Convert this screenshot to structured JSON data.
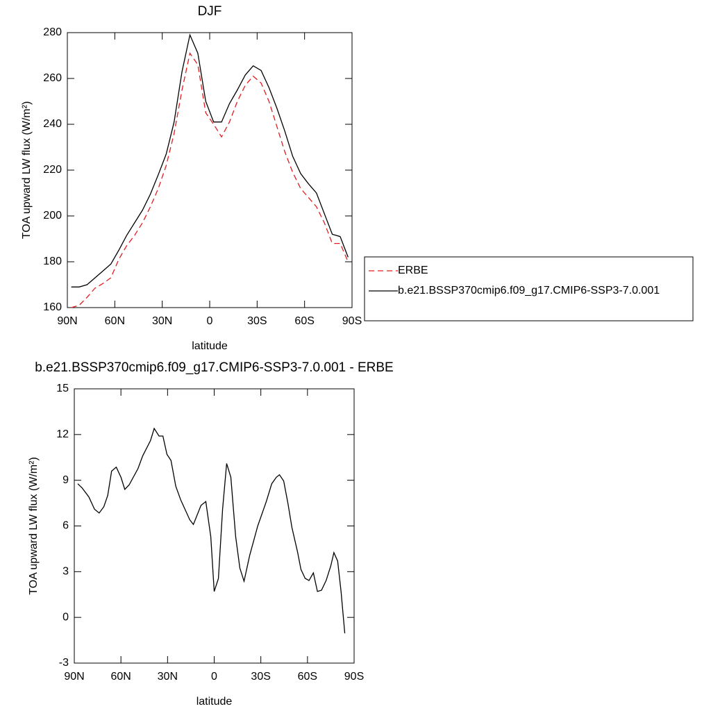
{
  "chart_data": [
    {
      "type": "line",
      "title": "DJF",
      "x_label": "latitude",
      "y_label": "TOA upward LW flux (W/m²)",
      "xlim": [
        90,
        -90
      ],
      "xticks": [
        {
          "value": 90,
          "label": "90N"
        },
        {
          "value": 60,
          "label": "60N"
        },
        {
          "value": 30,
          "label": "30N"
        },
        0,
        {
          "value": -30,
          "label": "30S"
        },
        {
          "value": -60,
          "label": "60S"
        },
        {
          "value": -90,
          "label": "90S"
        }
      ],
      "ylim": [
        160,
        280
      ],
      "yticks": [
        160,
        180,
        200,
        220,
        240,
        260,
        280
      ],
      "legend": "outside-right",
      "x": [
        87.5,
        82.5,
        77.5,
        72.5,
        67.5,
        62.5,
        57.5,
        52.5,
        47.5,
        42.5,
        37.5,
        32.5,
        27.5,
        22.5,
        17.5,
        12.5,
        7.5,
        2.5,
        -2.5,
        -7.5,
        -12.5,
        -17.5,
        -22.5,
        -27.5,
        -32.5,
        -37.5,
        -42.5,
        -47.5,
        -52.5,
        -57.5,
        -62.5,
        -67.5,
        -72.5,
        -77.5,
        -82.5,
        -87.5
      ],
      "series": [
        {
          "name": "ERBE",
          "color": "#e41a1c",
          "dash": "dashed",
          "values": [
            160,
            161,
            164.5,
            168.5,
            170.5,
            173,
            181,
            187,
            191.5,
            197,
            204,
            212,
            222,
            236,
            255,
            271,
            266,
            245,
            240,
            234.5,
            241,
            250,
            257,
            261,
            258,
            250,
            239,
            228,
            219,
            212,
            208,
            204,
            197,
            188,
            188,
            180
          ]
        },
        {
          "name": "b.e21.BSSP370cmip6.f09_g17.CMIP6-SSP3-7.0.001",
          "color": "#000000",
          "dash": "solid",
          "values": [
            169,
            169,
            170,
            173,
            176,
            179,
            185,
            191.5,
            197,
            202.5,
            209.5,
            218,
            227,
            241,
            263,
            279,
            271,
            250,
            241,
            241,
            249,
            255,
            261.5,
            265.5,
            263.5,
            256,
            247,
            237,
            226,
            218.5,
            214,
            210,
            201,
            192,
            191,
            182
          ]
        }
      ]
    },
    {
      "type": "line",
      "title": "b.e21.BSSP370cmip6.f09_g17.CMIP6-SSP3-7.0.001 - ERBE",
      "x_label": "latitude",
      "y_label": "TOA upward LW flux (W/m²)",
      "xlim": [
        90,
        -90
      ],
      "xticks": [
        {
          "value": 90,
          "label": "90N"
        },
        {
          "value": 60,
          "label": "60N"
        },
        {
          "value": 30,
          "label": "30N"
        },
        0,
        {
          "value": -30,
          "label": "30S"
        },
        {
          "value": -60,
          "label": "60S"
        },
        {
          "value": -90,
          "label": "90S"
        }
      ],
      "ylim": [
        -3,
        15
      ],
      "yticks": [
        -3,
        0,
        3,
        6,
        9,
        12,
        15
      ],
      "x": [
        87.8,
        85,
        80.6,
        77,
        74,
        71,
        68.5,
        66,
        63,
        60,
        57.5,
        54.7,
        49,
        46,
        43,
        41,
        38.6,
        35.5,
        33,
        30.4,
        27.8,
        24.7,
        21.5,
        15.7,
        13.4,
        8.5,
        5.4,
        2.2,
        0,
        -2.7,
        -5.4,
        -8,
        -10.7,
        -13.8,
        -16.5,
        -19.2,
        -22.8,
        -28,
        -33.5,
        -37,
        -40,
        -42,
        -44.7,
        -47.4,
        -50,
        -53.6,
        -55.8,
        -58.5,
        -61,
        -63.8,
        -66.4,
        -69,
        -72,
        -75,
        -77,
        -79.4,
        -81.6,
        -84
      ],
      "series": [
        {
          "color": "#000000",
          "dash": "solid",
          "values": [
            8.77,
            8.5,
            7.9,
            7.1,
            6.85,
            7.26,
            8.0,
            9.6,
            9.86,
            9.2,
            8.4,
            8.7,
            9.77,
            10.6,
            11.2,
            11.6,
            12.4,
            11.9,
            11.9,
            10.7,
            10.3,
            8.6,
            7.7,
            6.4,
            6.1,
            7.35,
            7.6,
            5.3,
            1.7,
            2.55,
            7.1,
            10.1,
            9.2,
            5.3,
            3.24,
            2.37,
            4.06,
            6.0,
            7.6,
            8.77,
            9.2,
            9.36,
            8.95,
            7.5,
            5.9,
            4.3,
            3.15,
            2.56,
            2.42,
            2.92,
            1.7,
            1.78,
            2.42,
            3.38,
            4.25,
            3.7,
            1.7,
            -1.05
          ]
        }
      ]
    }
  ]
}
